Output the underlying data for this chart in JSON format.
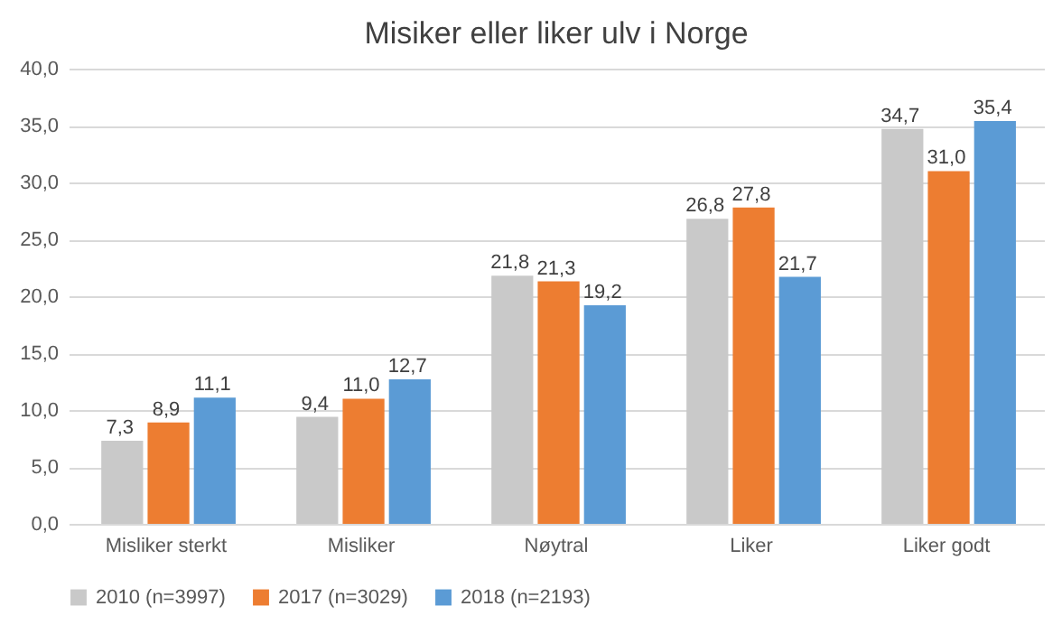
{
  "chart_data": {
    "type": "bar",
    "title": "Misiker eller liker ulv i Norge",
    "categories": [
      "Misliker sterkt",
      "Misliker",
      "Nøytral",
      "Liker",
      "Liker godt"
    ],
    "series": [
      {
        "name": "2010 (n=3997)",
        "color": "#c9c9c9",
        "values": [
          7.3,
          9.4,
          21.8,
          26.8,
          34.7
        ],
        "value_labels": [
          "7,3",
          "9,4",
          "21,8",
          "26,8",
          "34,7"
        ]
      },
      {
        "name": "2017 (n=3029)",
        "color": "#ed7d31",
        "values": [
          8.9,
          11.0,
          21.3,
          27.8,
          31.0
        ],
        "value_labels": [
          "8,9",
          "11,0",
          "21,3",
          "27,8",
          "31,0"
        ]
      },
      {
        "name": "2018 (n=2193)",
        "color": "#5b9bd5",
        "values": [
          11.1,
          12.7,
          19.2,
          21.7,
          35.4
        ],
        "value_labels": [
          "11,1",
          "12,7",
          "19,2",
          "21,7",
          "35,4"
        ]
      }
    ],
    "ylim": [
      0,
      40
    ],
    "yticks": [
      {
        "value": 0,
        "label": "0,0"
      },
      {
        "value": 5,
        "label": "5,0"
      },
      {
        "value": 10,
        "label": "10,0"
      },
      {
        "value": 15,
        "label": "15,0"
      },
      {
        "value": 20,
        "label": "20,0"
      },
      {
        "value": 25,
        "label": "25,0"
      },
      {
        "value": 30,
        "label": "30,0"
      },
      {
        "value": 35,
        "label": "35,0"
      },
      {
        "value": 40,
        "label": "40,0"
      }
    ],
    "grid": "y",
    "legend": "bottom"
  }
}
